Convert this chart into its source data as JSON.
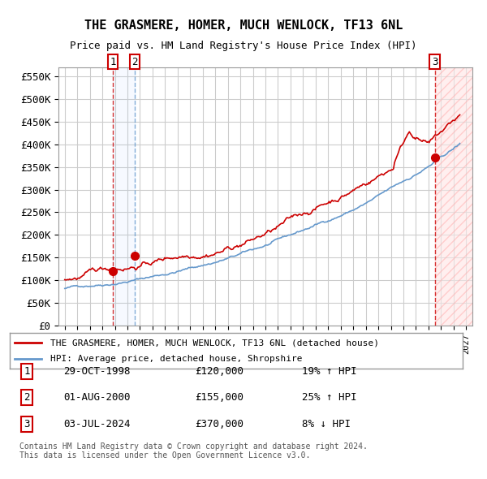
{
  "title": "THE GRASMERE, HOMER, MUCH WENLOCK, TF13 6NL",
  "subtitle": "Price paid vs. HM Land Registry's House Price Index (HPI)",
  "legend_line1": "THE GRASMERE, HOMER, MUCH WENLOCK, TF13 6NL (detached house)",
  "legend_line2": "HPI: Average price, detached house, Shropshire",
  "transactions": [
    {
      "num": 1,
      "date": "29-OCT-1998",
      "price": 120000,
      "hpi_pct": "19%",
      "direction": "↑"
    },
    {
      "num": 2,
      "date": "01-AUG-2000",
      "price": 155000,
      "hpi_pct": "25%",
      "direction": "↑"
    },
    {
      "num": 3,
      "date": "03-JUL-2024",
      "price": 370000,
      "hpi_pct": "8%",
      "direction": "↓"
    }
  ],
  "transaction_years": [
    1998.83,
    2000.58,
    2024.5
  ],
  "transaction_prices": [
    120000,
    155000,
    370000
  ],
  "footer": "Contains HM Land Registry data © Crown copyright and database right 2024.\nThis data is licensed under the Open Government Licence v3.0.",
  "hpi_color": "#6699cc",
  "price_color": "#cc0000",
  "marker_color": "#cc0000",
  "ylim": [
    0,
    570000
  ],
  "yticks": [
    0,
    50000,
    100000,
    150000,
    200000,
    250000,
    300000,
    350000,
    400000,
    450000,
    500000,
    550000
  ],
  "xlim_start": 1994.5,
  "xlim_end": 2027.5,
  "background_color": "#ffffff",
  "grid_color": "#cccccc",
  "hatch_color": "#ffdddd"
}
